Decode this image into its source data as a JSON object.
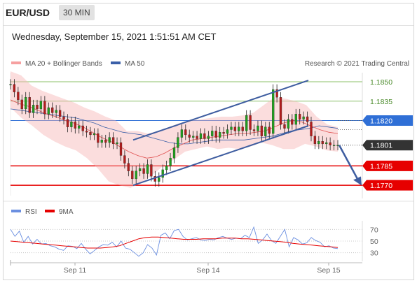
{
  "header": {
    "symbol": "EUR/USD",
    "timeframe": "30 MIN",
    "datetime": "Wednesday, September 15, 2021 1:51:51 AM CET"
  },
  "legend": {
    "ma20": "MA 20 + Bollinger Bands",
    "ma50": "MA 50",
    "copyright": "Research © 2021 Trading Central"
  },
  "rsi_legend": {
    "rsi": "RSI",
    "ma": "9MA"
  },
  "colors": {
    "bollinger": "#f6b3b3",
    "ma20": "#e05050",
    "ma50": "#3a5fa8",
    "green": "#8cc06a",
    "blue": "#2f6fd6",
    "red": "#e60000",
    "dark": "#333333",
    "trend": "#3e5da0",
    "rsi": "#6b8fe0"
  },
  "chart_data": {
    "type": "line",
    "title": "EUR/USD 30 MIN",
    "x_ticks": [
      "Sep 11",
      "Sep 14",
      "Sep 15"
    ],
    "ylim": [
      1.1762,
      1.1857
    ],
    "levels": [
      {
        "label": "1.1850",
        "value": 1.185,
        "role": "resistance"
      },
      {
        "label": "1.1835",
        "value": 1.1835,
        "role": "resistance"
      },
      {
        "label": "1.1820",
        "value": 1.182,
        "role": "pivot"
      },
      {
        "label": "1.1801",
        "value": 1.1801,
        "role": "last price"
      },
      {
        "label": "1.1785",
        "value": 1.1785,
        "role": "target"
      },
      {
        "label": "1.1770",
        "value": 1.177,
        "role": "target"
      }
    ],
    "price_close": [
      1.1848,
      1.1842,
      1.1836,
      1.1829,
      1.1838,
      1.1826,
      1.1832,
      1.1829,
      1.1835,
      1.1825,
      1.183,
      1.1826,
      1.1828,
      1.1823,
      1.1821,
      1.1815,
      1.1819,
      1.1814,
      1.1816,
      1.1812,
      1.1811,
      1.1809,
      1.181,
      1.1803,
      1.1805,
      1.1803,
      1.1807,
      1.1802,
      1.1803,
      1.1793,
      1.1787,
      1.1781,
      1.1775,
      1.1781,
      1.1783,
      1.1779,
      1.1786,
      1.1777,
      1.1773,
      1.1776,
      1.1782,
      1.1785,
      1.1791,
      1.1799,
      1.1807,
      1.1813,
      1.1809,
      1.1807,
      1.1808,
      1.1806,
      1.181,
      1.1806,
      1.1808,
      1.1812,
      1.1807,
      1.1811,
      1.181,
      1.1813,
      1.1815,
      1.1812,
      1.1815,
      1.1812,
      1.1824,
      1.1813,
      1.1812,
      1.1816,
      1.1808,
      1.1815,
      1.181,
      1.1844,
      1.1838,
      1.1817,
      1.1814,
      1.1821,
      1.1817,
      1.1825,
      1.1821,
      1.1823,
      1.1819,
      1.1808,
      1.1802,
      1.1804,
      1.1802,
      1.1803,
      1.1801,
      1.1801,
      1.1801
    ],
    "ma50": [
      1.1829,
      1.1828,
      1.1827,
      1.1826,
      1.1825,
      1.1824,
      1.1823,
      1.1822,
      1.182,
      1.1818,
      1.1815,
      1.1813,
      1.1811,
      1.181,
      1.1809,
      1.1807,
      1.1805,
      1.1803,
      1.1802,
      1.1802,
      1.1803,
      1.1804,
      1.1805,
      1.1805,
      1.1805,
      1.1805,
      1.1806,
      1.1807,
      1.1808,
      1.181,
      1.1812,
      1.1813,
      1.1814,
      1.1816,
      1.1815,
      1.1814
    ],
    "ma20": [
      1.1836,
      1.1833,
      1.1831,
      1.1828,
      1.1825,
      1.1823,
      1.182,
      1.1818,
      1.1815,
      1.1811,
      1.1807,
      1.1804,
      1.18,
      1.1796,
      1.1793,
      1.1791,
      1.1792,
      1.1795,
      1.1799,
      1.1802,
      1.1805,
      1.1806,
      1.1807,
      1.1808,
      1.1809,
      1.181,
      1.181,
      1.1811,
      1.1812,
      1.1815,
      1.1818,
      1.182,
      1.1819,
      1.1816,
      1.1813,
      1.1811,
      1.181
    ],
    "bollinger_upper": [
      1.1858,
      1.1855,
      1.1847,
      1.1843,
      1.184,
      1.1837,
      1.1834,
      1.183,
      1.1827,
      1.1823,
      1.182,
      1.1812,
      1.1812,
      1.181,
      1.1812,
      1.1815,
      1.1818,
      1.182,
      1.1821,
      1.1822,
      1.1823,
      1.1823,
      1.1824,
      1.1826,
      1.1832,
      1.1838,
      1.1837,
      1.1835,
      1.1832,
      1.1823,
      1.1817,
      1.1815
    ],
    "bollinger_lower": [
      1.183,
      1.1822,
      1.1816,
      1.1809,
      1.1804,
      1.18,
      1.1797,
      1.1791,
      1.1783,
      1.1773,
      1.177,
      1.1768,
      1.1772,
      1.1778,
      1.1785,
      1.179,
      1.1796,
      1.1798,
      1.18,
      1.1798,
      1.1799,
      1.1798,
      1.18,
      1.1803,
      1.1801,
      1.1798,
      1.1798,
      1.1802,
      1.18,
      1.1797,
      1.1796
    ],
    "channel": [
      {
        "from": [
          0,
          1.1805
        ],
        "to": [
          28,
          1.1851
        ]
      },
      {
        "from": [
          0,
          1.177
        ],
        "to": [
          28,
          1.1816
        ]
      }
    ],
    "forecast_arrow": {
      "from": 1.1801,
      "to": 1.1772
    },
    "rsi": {
      "ticks": [
        70,
        50,
        30
      ],
      "ylim": [
        20,
        80
      ],
      "rsi": [
        70,
        58,
        67,
        48,
        58,
        45,
        53,
        45,
        46,
        42,
        40,
        36,
        34,
        42,
        41,
        37,
        46,
        36,
        28,
        34,
        40,
        44,
        43,
        48,
        40,
        50,
        38,
        36,
        30,
        24,
        30,
        44,
        38,
        26,
        60,
        64,
        54,
        68,
        70,
        58,
        52,
        54,
        56,
        52,
        51,
        53,
        52,
        56,
        58,
        55,
        53,
        55,
        54,
        60,
        56,
        74,
        46,
        52,
        62,
        51,
        46,
        58,
        70,
        40,
        56,
        52,
        45,
        47,
        56,
        51,
        48,
        40,
        42,
        38,
        37
      ],
      "ma": [
        50,
        49,
        48,
        47,
        46,
        45,
        44,
        43,
        42,
        41,
        40,
        39,
        38,
        38,
        38,
        39,
        40,
        42,
        46,
        50,
        54,
        56,
        57,
        57,
        56,
        55,
        54,
        53,
        53,
        53,
        54,
        54,
        54,
        55,
        55,
        55,
        54,
        54,
        53,
        52,
        51,
        50,
        49,
        48,
        46,
        45,
        44,
        43,
        42,
        41,
        40,
        39
      ]
    }
  }
}
